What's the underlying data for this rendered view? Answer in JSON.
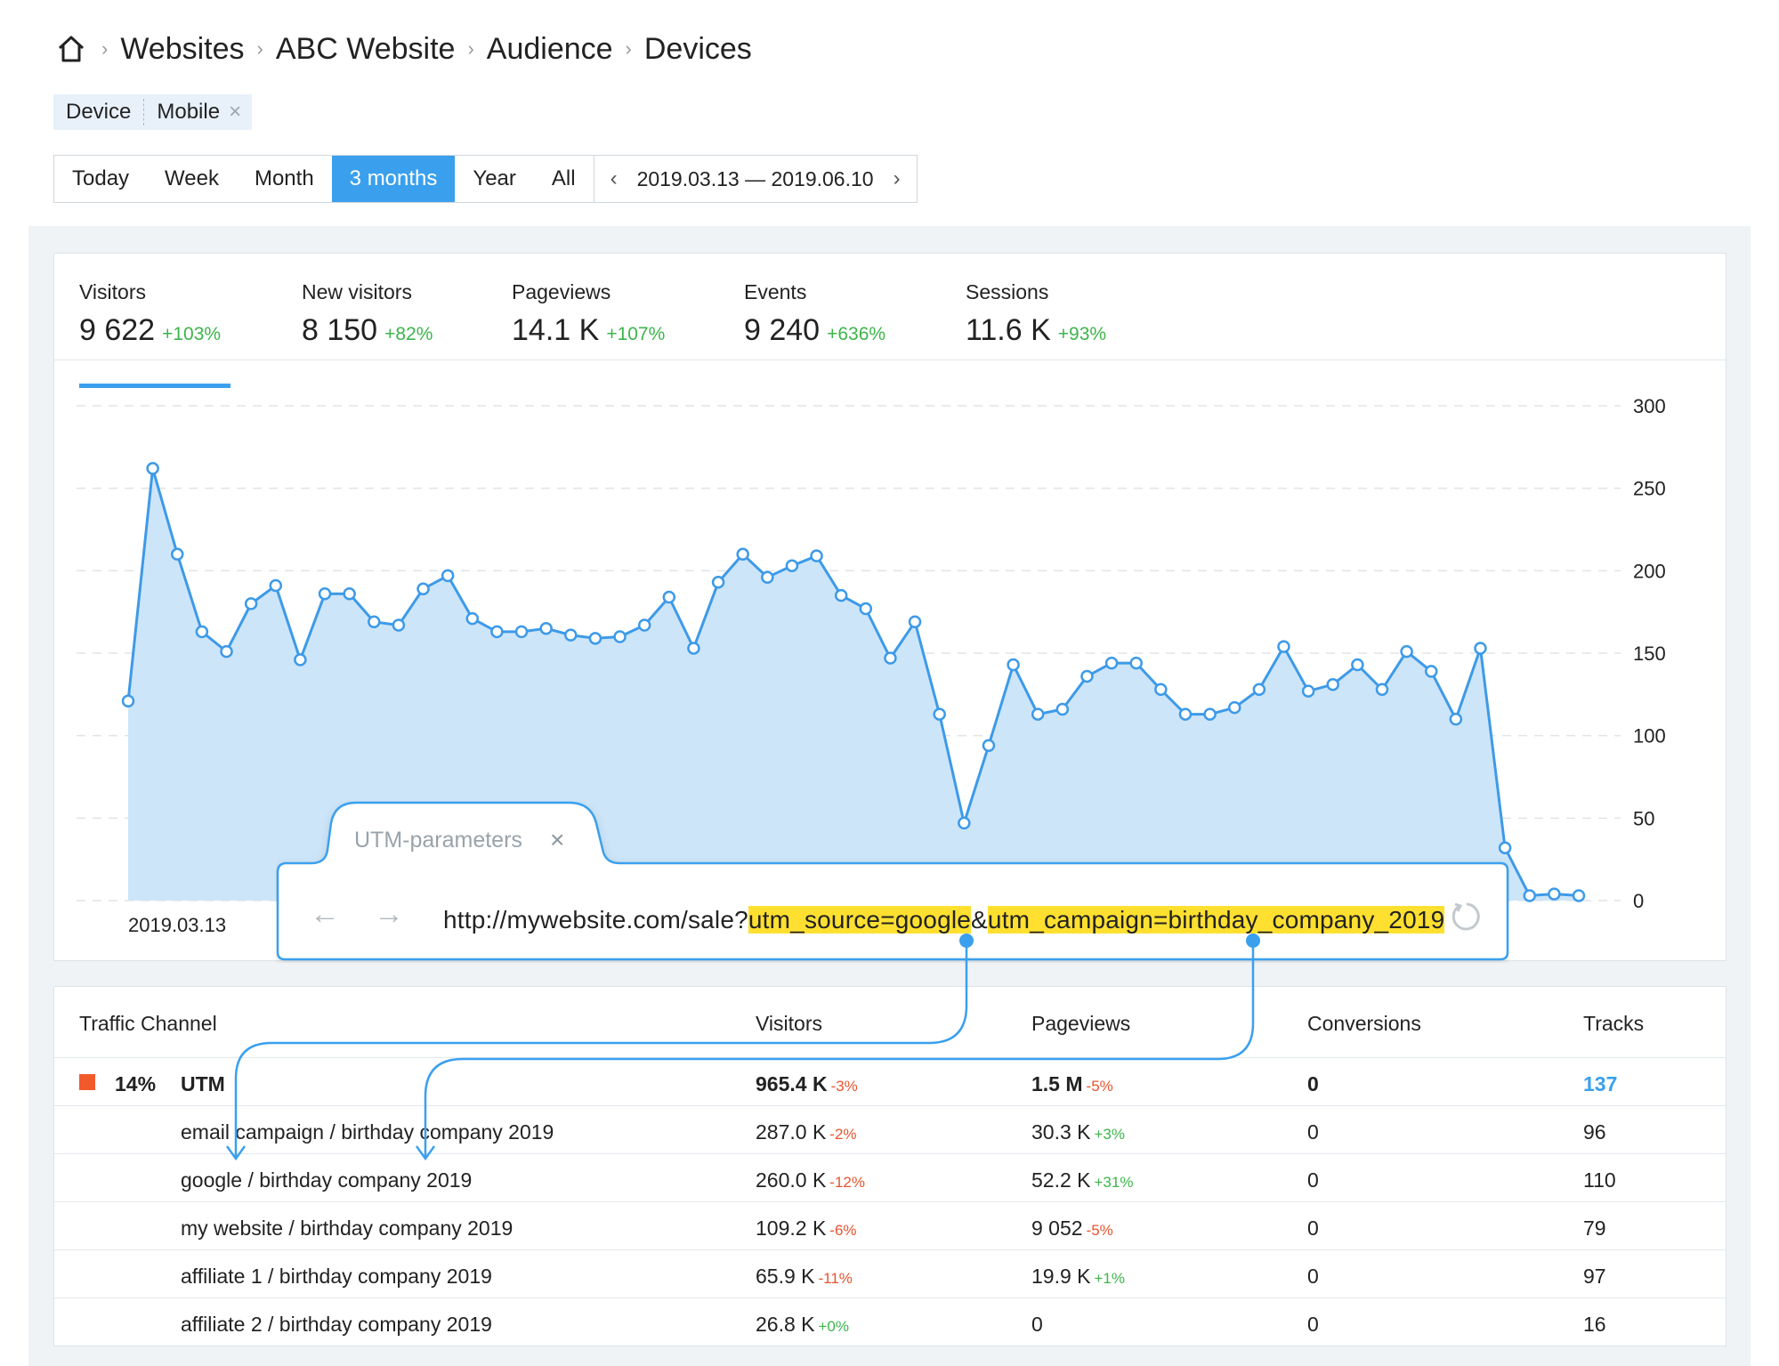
{
  "breadcrumb": {
    "items": [
      "Websites",
      "ABC Website",
      "Audience",
      "Devices"
    ]
  },
  "filter": {
    "key": "Device",
    "value": "Mobile",
    "remove": "×"
  },
  "periods": {
    "options": [
      "Today",
      "Week",
      "Month",
      "3 months",
      "Year",
      "All"
    ],
    "active": "3 months",
    "range": "2019.03.13 — 2019.06.10",
    "prev": "‹",
    "next": "›"
  },
  "metrics": [
    {
      "label": "Visitors",
      "value": "9 622",
      "change": "+103%"
    },
    {
      "label": "New visitors",
      "value": "8 150",
      "change": "+82%"
    },
    {
      "label": "Pageviews",
      "value": "14.1 K",
      "change": "+107%"
    },
    {
      "label": "Events",
      "value": "9 240",
      "change": "+636%"
    },
    {
      "label": "Sessions",
      "value": "11.6 K",
      "change": "+93%"
    }
  ],
  "chart_data": {
    "type": "area",
    "series": [
      {
        "values": [
          121,
          262,
          210,
          163,
          151,
          180,
          191,
          146,
          186,
          186,
          169,
          167,
          189,
          197,
          171,
          163,
          163,
          165,
          161,
          159,
          160,
          167,
          184,
          153,
          193,
          210,
          196,
          203,
          209,
          185,
          177,
          147,
          169,
          113,
          47,
          94,
          143,
          113,
          116,
          136,
          144,
          144,
          128,
          113,
          113,
          117,
          128,
          154,
          127,
          131,
          143,
          128,
          151,
          139,
          110,
          153,
          32,
          3,
          4,
          3
        ]
      }
    ],
    "x_start_label": "2019.03.13",
    "y_ticks": [
      0,
      50,
      100,
      150,
      200,
      250,
      300
    ],
    "ylim": [
      0,
      300
    ],
    "grid": true,
    "color": "#3d9ae8",
    "fill": "#cde5f9"
  },
  "utm_popup": {
    "tab_label": "UTM-parameters",
    "close": "×",
    "back": "←",
    "forward": "→",
    "url_base": "http://mywebsite.com/sale?",
    "param1": "utm_source=google",
    "amp": "&",
    "param2": "utm_campaign=birthday_company_2019",
    "highlight_color": "#ffe030"
  },
  "table": {
    "headers": [
      "Traffic Channel",
      "Visitors",
      "Pageviews",
      "Conversions",
      "Tracks"
    ],
    "summary": {
      "share": "14%",
      "channel": "UTM",
      "visitors": "965.4 K",
      "visitors_change": "-3%",
      "pageviews": "1.5 M",
      "pageviews_change": "-5%",
      "conversions": "0",
      "tracks": "137",
      "color": "#f25a2c"
    },
    "rows": [
      {
        "name": "email campaign / birthday company 2019",
        "visitors": "287.0 K",
        "visitors_change": "-2%",
        "visitors_trend": "neg",
        "pageviews": "30.3 K",
        "pageviews_change": "+3%",
        "pageviews_trend": "pos",
        "conversions": "0",
        "tracks": "96"
      },
      {
        "name": "google / birthday company 2019",
        "visitors": "260.0 K",
        "visitors_change": "-12%",
        "visitors_trend": "neg",
        "pageviews": "52.2 K",
        "pageviews_change": "+31%",
        "pageviews_trend": "pos",
        "conversions": "0",
        "tracks": "110"
      },
      {
        "name": "my website / birthday company 2019",
        "visitors": "109.2 K",
        "visitors_change": "-6%",
        "visitors_trend": "neg",
        "pageviews": "9 052",
        "pageviews_change": "-5%",
        "pageviews_trend": "neg",
        "conversions": "0",
        "tracks": "79"
      },
      {
        "name": "affiliate 1 / birthday company 2019",
        "visitors": "65.9 K",
        "visitors_change": "-11%",
        "visitors_trend": "neg",
        "pageviews": "19.9 K",
        "pageviews_change": "+1%",
        "pageviews_trend": "pos",
        "conversions": "0",
        "tracks": "97"
      },
      {
        "name": "affiliate 2 / birthday company 2019",
        "visitors": "26.8 K",
        "visitors_change": "+0%",
        "visitors_trend": "pos",
        "pageviews": "0",
        "pageviews_change": "",
        "pageviews_trend": "",
        "conversions": "0",
        "tracks": "16"
      }
    ]
  }
}
